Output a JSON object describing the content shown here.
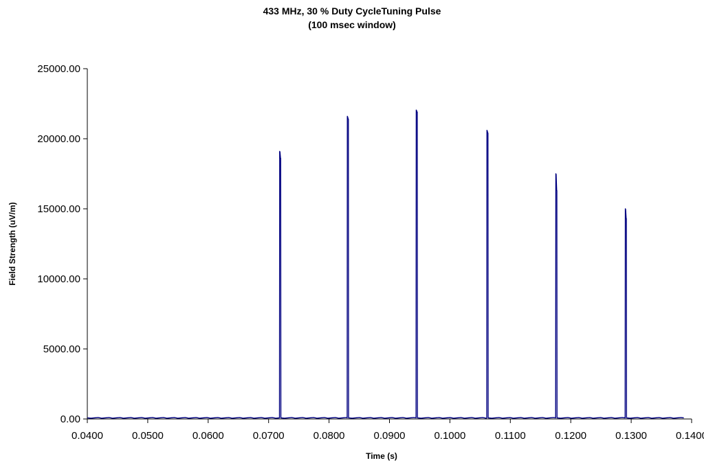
{
  "chart_data": {
    "type": "line",
    "title": "433 MHz, 30 % Duty CycleTuning Pulse",
    "subtitle": "(100 msec window)",
    "xlabel": "Time (s)",
    "ylabel": "Field Strength (uV/m)",
    "xlim": [
      0.04,
      0.14
    ],
    "ylim": [
      0,
      25000
    ],
    "x_ticks": [
      "0.0400",
      "0.0500",
      "0.0600",
      "0.0700",
      "0.0800",
      "0.0900",
      "0.1000",
      "0.1100",
      "0.1200",
      "0.1300",
      "0.1400"
    ],
    "y_ticks": [
      "0.00",
      "5000.00",
      "10000.00",
      "15000.00",
      "20000.00",
      "25000.00"
    ],
    "grid": false,
    "legend": "none",
    "line_color": "#000080",
    "baseline": 80,
    "x_end": 0.1387,
    "series": [
      {
        "pulses": [
          {
            "start": 0.0718,
            "end": 0.072,
            "peak": 19100,
            "end_level": 18600
          },
          {
            "start": 0.083,
            "end": 0.0832,
            "peak": 21600,
            "end_level": 21400
          },
          {
            "start": 0.0944,
            "end": 0.0946,
            "peak": 22050,
            "end_level": 21900
          },
          {
            "start": 0.1061,
            "end": 0.1063,
            "peak": 20600,
            "end_level": 20400
          },
          {
            "start": 0.1175,
            "end": 0.1177,
            "peak": 17500,
            "end_level": 16300
          },
          {
            "start": 0.129,
            "end": 0.1292,
            "peak": 15000,
            "end_level": 14300
          }
        ]
      }
    ]
  }
}
